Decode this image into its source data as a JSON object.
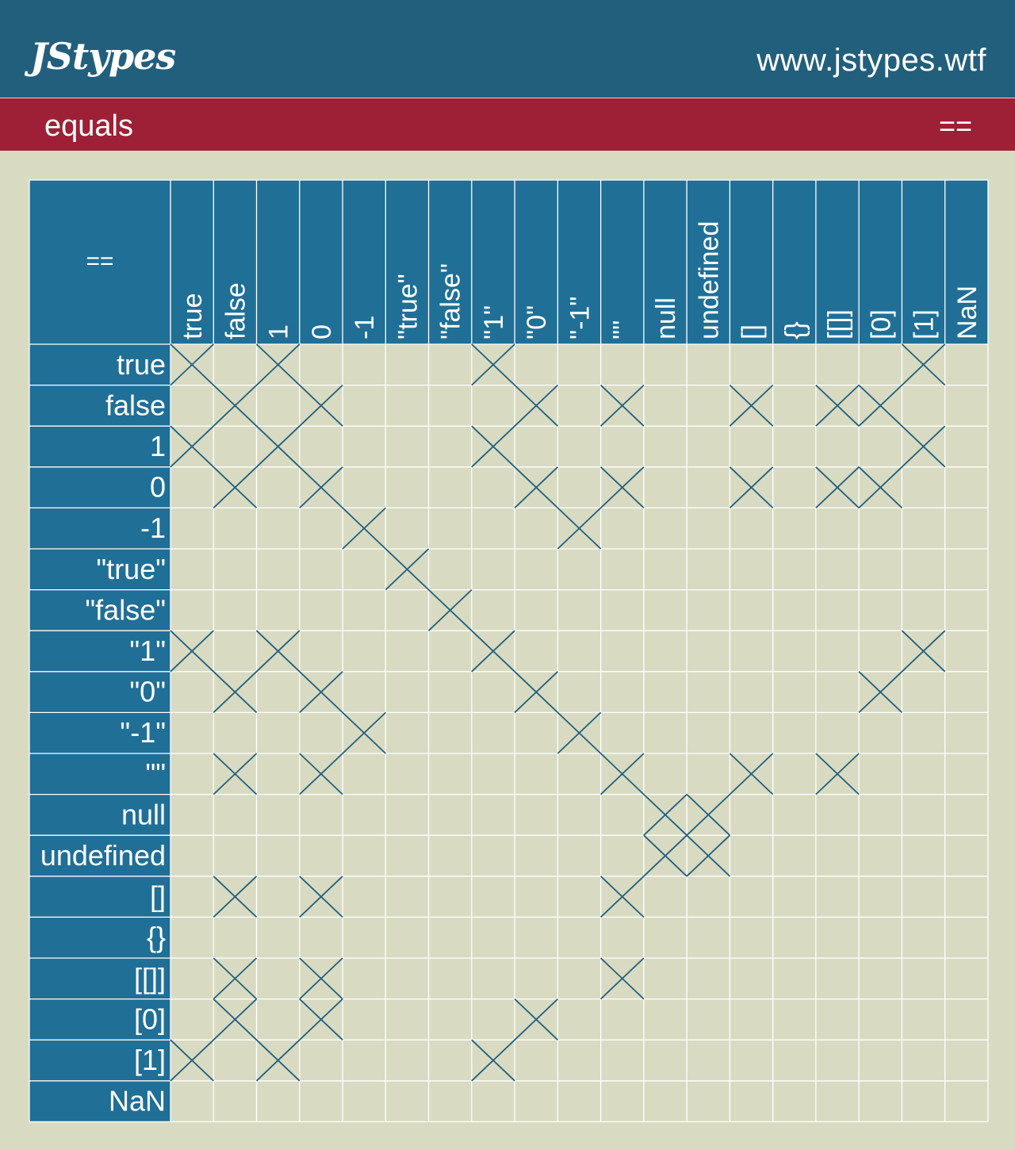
{
  "header": {
    "logo_text": "JStypes",
    "site_url": "www.jstypes.wtf"
  },
  "subheader": {
    "title": "equals",
    "operator": "=="
  },
  "colors": {
    "header_bg": "#225f7c",
    "subheader_bg": "#9e2036",
    "page_bg": "#d8dbc2",
    "label_cell_bg": "#206f97",
    "mark": "#225f7c",
    "grid": "#ffffff"
  },
  "chart_data": {
    "type": "heatmap",
    "title": "equals",
    "corner_label": "==",
    "mark_symbol": "X",
    "grid": true,
    "columns": [
      "true",
      "false",
      "1",
      "0",
      "-1",
      "\"true\"",
      "\"false\"",
      "\"1\"",
      "\"0\"",
      "\"-1\"",
      "\"\"",
      "null",
      "undefined",
      "[]",
      "{}",
      "[[]]",
      "[0]",
      "[1]",
      "NaN"
    ],
    "rows": [
      "true",
      "false",
      "1",
      "0",
      "-1",
      "\"true\"",
      "\"false\"",
      "\"1\"",
      "\"0\"",
      "\"-1\"",
      "\"\"",
      "null",
      "undefined",
      "[]",
      "{}",
      "[[]]",
      "[0]",
      "[1]",
      "NaN"
    ],
    "matrix": [
      [
        1,
        0,
        1,
        0,
        0,
        0,
        0,
        1,
        0,
        0,
        0,
        0,
        0,
        0,
        0,
        0,
        0,
        1,
        0
      ],
      [
        0,
        1,
        0,
        1,
        0,
        0,
        0,
        0,
        1,
        0,
        1,
        0,
        0,
        1,
        0,
        1,
        1,
        0,
        0
      ],
      [
        1,
        0,
        1,
        0,
        0,
        0,
        0,
        1,
        0,
        0,
        0,
        0,
        0,
        0,
        0,
        0,
        0,
        1,
        0
      ],
      [
        0,
        1,
        0,
        1,
        0,
        0,
        0,
        0,
        1,
        0,
        1,
        0,
        0,
        1,
        0,
        1,
        1,
        0,
        0
      ],
      [
        0,
        0,
        0,
        0,
        1,
        0,
        0,
        0,
        0,
        1,
        0,
        0,
        0,
        0,
        0,
        0,
        0,
        0,
        0
      ],
      [
        0,
        0,
        0,
        0,
        0,
        1,
        0,
        0,
        0,
        0,
        0,
        0,
        0,
        0,
        0,
        0,
        0,
        0,
        0
      ],
      [
        0,
        0,
        0,
        0,
        0,
        0,
        1,
        0,
        0,
        0,
        0,
        0,
        0,
        0,
        0,
        0,
        0,
        0,
        0
      ],
      [
        1,
        0,
        1,
        0,
        0,
        0,
        0,
        1,
        0,
        0,
        0,
        0,
        0,
        0,
        0,
        0,
        0,
        1,
        0
      ],
      [
        0,
        1,
        0,
        1,
        0,
        0,
        0,
        0,
        1,
        0,
        0,
        0,
        0,
        0,
        0,
        0,
        1,
        0,
        0
      ],
      [
        0,
        0,
        0,
        0,
        1,
        0,
        0,
        0,
        0,
        1,
        0,
        0,
        0,
        0,
        0,
        0,
        0,
        0,
        0
      ],
      [
        0,
        1,
        0,
        1,
        0,
        0,
        0,
        0,
        0,
        0,
        1,
        0,
        0,
        1,
        0,
        1,
        0,
        0,
        0
      ],
      [
        0,
        0,
        0,
        0,
        0,
        0,
        0,
        0,
        0,
        0,
        0,
        1,
        1,
        0,
        0,
        0,
        0,
        0,
        0
      ],
      [
        0,
        0,
        0,
        0,
        0,
        0,
        0,
        0,
        0,
        0,
        0,
        1,
        1,
        0,
        0,
        0,
        0,
        0,
        0
      ],
      [
        0,
        1,
        0,
        1,
        0,
        0,
        0,
        0,
        0,
        0,
        1,
        0,
        0,
        0,
        0,
        0,
        0,
        0,
        0
      ],
      [
        0,
        0,
        0,
        0,
        0,
        0,
        0,
        0,
        0,
        0,
        0,
        0,
        0,
        0,
        0,
        0,
        0,
        0,
        0
      ],
      [
        0,
        1,
        0,
        1,
        0,
        0,
        0,
        0,
        0,
        0,
        1,
        0,
        0,
        0,
        0,
        0,
        0,
        0,
        0
      ],
      [
        0,
        1,
        0,
        1,
        0,
        0,
        0,
        0,
        1,
        0,
        0,
        0,
        0,
        0,
        0,
        0,
        0,
        0,
        0
      ],
      [
        1,
        0,
        1,
        0,
        0,
        0,
        0,
        1,
        0,
        0,
        0,
        0,
        0,
        0,
        0,
        0,
        0,
        0,
        0
      ],
      [
        0,
        0,
        0,
        0,
        0,
        0,
        0,
        0,
        0,
        0,
        0,
        0,
        0,
        0,
        0,
        0,
        0,
        0,
        0
      ]
    ]
  }
}
